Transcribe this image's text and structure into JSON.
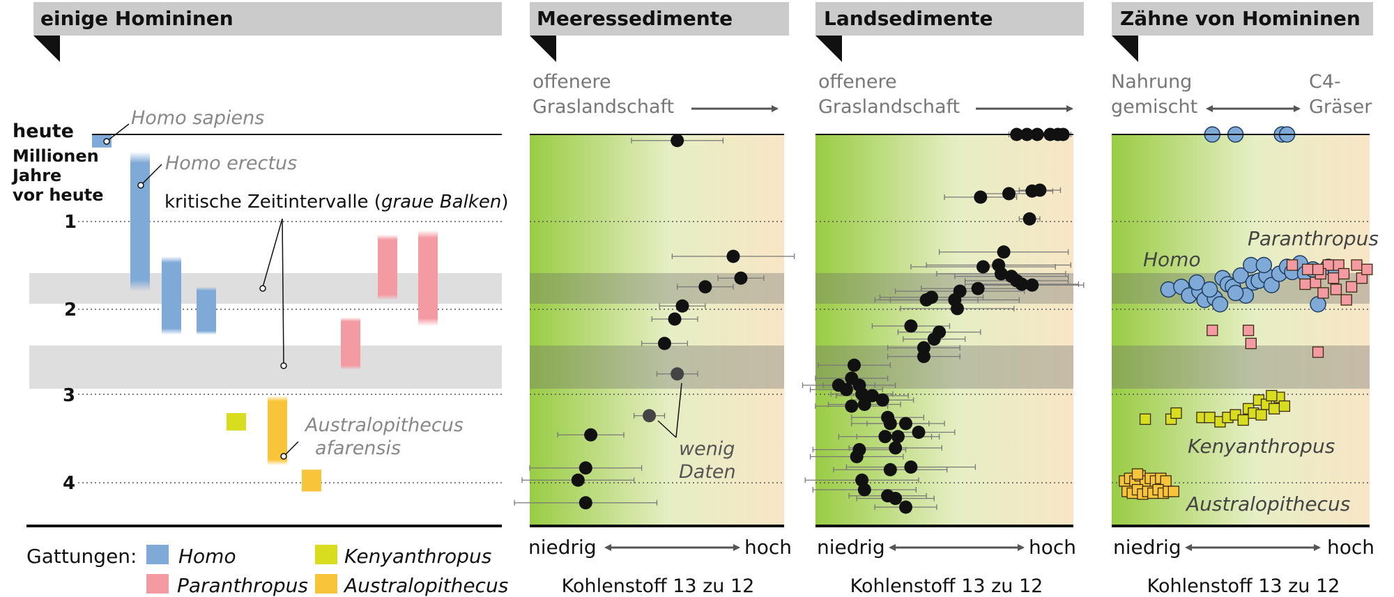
{
  "colors": {
    "homo": "#7fa9d7",
    "paranthropus": "#f49aa3",
    "kenyanthropus": "#d8dd1f",
    "australopithecus": "#f8c53a",
    "header_bg": "#cbcbcb",
    "band_bg": "#dedede",
    "green": "#99cc44",
    "tan": "#f8e6c6",
    "label_gray": "#888888"
  },
  "panels": {
    "hominins": {
      "title": "einige Homininen",
      "top_label": "heute",
      "axis_label_lines": [
        "Millionen",
        "Jahre",
        "vor heute"
      ],
      "ticks": [
        "1",
        "2",
        "3",
        "4"
      ],
      "callouts": {
        "homo_sapiens": "Homo sapiens",
        "homo_erectus": "Homo erectus",
        "critical_prefix": "kritische Zeitintervalle (",
        "critical_italic": "graue Balken",
        "critical_suffix": ")",
        "afarensis_1": "Australopithecus",
        "afarensis_2": "afarensis"
      },
      "legend": {
        "title": "Gattungen:",
        "homo": "Homo",
        "paranthropus": "Paranthropus",
        "kenyanthropus": "Kenyanthropus",
        "australopithecus": "Australopithecus"
      }
    },
    "marine": {
      "title": "Meeressedimente",
      "top_label_1": "offenere",
      "top_label_2": "Graslandschaft",
      "note_1": "wenig",
      "note_2": "Daten",
      "x_low": "niedrig",
      "x_high": "hoch",
      "x_label": "Kohlenstoff 13 zu 12"
    },
    "land": {
      "title": "Landsedimente",
      "top_label_1": "offenere",
      "top_label_2": "Graslandschaft",
      "x_low": "niedrig",
      "x_high": "hoch",
      "x_label": "Kohlenstoff 13 zu 12"
    },
    "teeth": {
      "title": "Zähne von Homininen",
      "top_left_1": "Nahrung",
      "top_left_2": "gemischt",
      "top_right_1": "C4-",
      "top_right_2": "Gräser",
      "label_homo": "Homo",
      "label_paranthropus": "Paranthropus",
      "label_kenyanthropus": "Kenyanthropus",
      "label_australopithecus": "Australopithecus",
      "x_low": "niedrig",
      "x_high": "hoch",
      "x_label": "Kohlenstoff 13 zu 12"
    }
  },
  "chart_data": [
    {
      "type": "bar",
      "title": "einige Homininen",
      "ylabel": "Millionen Jahre vor heute",
      "ylim": [
        0,
        4.4
      ],
      "critical_intervals_ma": [
        [
          1.55,
          1.9
        ],
        [
          2.4,
          2.9
        ]
      ],
      "series": [
        {
          "genus": "Homo",
          "ranges_ma": [
            [
              0.0,
              0.15
            ],
            [
              0.2,
              1.8
            ],
            [
              1.4,
              2.3
            ],
            [
              1.75,
              2.3
            ]
          ]
        },
        {
          "genus": "Paranthropus",
          "ranges_ma": [
            [
              1.15,
              1.9
            ],
            [
              1.1,
              2.2
            ],
            [
              2.1,
              2.7
            ]
          ]
        },
        {
          "genus": "Kenyanthropus",
          "ranges_ma": [
            [
              3.2,
              3.4
            ]
          ]
        },
        {
          "genus": "Australopithecus",
          "ranges_ma": [
            [
              3.0,
              3.8
            ],
            [
              3.85,
              4.1
            ]
          ]
        }
      ]
    },
    {
      "type": "scatter",
      "title": "Meeressedimente",
      "xlabel": "Kohlenstoff 13 zu 12",
      "ylabel": "Millionen Jahre vor heute",
      "xlim": [
        0,
        1
      ],
      "ylim": [
        0,
        4.4
      ],
      "points": [
        {
          "x": 0.58,
          "y": 0.07,
          "err": 0.18
        },
        {
          "x": 0.8,
          "y": 1.4,
          "err": 0.24
        },
        {
          "x": 0.83,
          "y": 1.65,
          "err": 0.09
        },
        {
          "x": 0.69,
          "y": 1.75,
          "err": 0.11
        },
        {
          "x": 0.6,
          "y": 1.97,
          "err": 0.09
        },
        {
          "x": 0.57,
          "y": 2.12,
          "err": 0.09
        },
        {
          "x": 0.53,
          "y": 2.4,
          "err": 0.09
        },
        {
          "x": 0.58,
          "y": 2.75,
          "err": 0.08,
          "sparse": true
        },
        {
          "x": 0.47,
          "y": 3.23,
          "err": 0.06,
          "sparse": true
        },
        {
          "x": 0.24,
          "y": 3.45,
          "err": 0.13
        },
        {
          "x": 0.22,
          "y": 3.83,
          "err": 0.22
        },
        {
          "x": 0.19,
          "y": 3.97,
          "err": 0.22
        },
        {
          "x": 0.22,
          "y": 4.23,
          "err": 0.28
        }
      ]
    },
    {
      "type": "scatter",
      "title": "Landsedimente",
      "xlabel": "Kohlenstoff 13 zu 12",
      "ylabel": "Millionen Jahre vor heute",
      "xlim": [
        0,
        1
      ],
      "ylim": [
        0,
        4.4
      ],
      "points": [
        {
          "x": 0.78,
          "y": 0.0,
          "err": 0.03
        },
        {
          "x": 0.82,
          "y": 0.0,
          "err": 0.03
        },
        {
          "x": 0.86,
          "y": 0.0,
          "err": 0.03
        },
        {
          "x": 0.91,
          "y": 0.0,
          "err": 0.03
        },
        {
          "x": 0.94,
          "y": 0.0,
          "err": 0.03
        },
        {
          "x": 0.96,
          "y": 0.0,
          "err": 0.03
        },
        {
          "x": 0.64,
          "y": 0.72,
          "err": 0.14
        },
        {
          "x": 0.75,
          "y": 0.68,
          "err": 0.12
        },
        {
          "x": 0.84,
          "y": 0.65,
          "err": 0.08
        },
        {
          "x": 0.87,
          "y": 0.64,
          "err": 0.08
        },
        {
          "x": 0.83,
          "y": 0.97,
          "err": 0.04
        },
        {
          "x": 0.73,
          "y": 1.35,
          "err": 0.25
        },
        {
          "x": 0.71,
          "y": 1.5,
          "err": 0.28
        },
        {
          "x": 0.65,
          "y": 1.52,
          "err": 0.28
        },
        {
          "x": 0.72,
          "y": 1.6,
          "err": 0.25
        },
        {
          "x": 0.76,
          "y": 1.63,
          "err": 0.22
        },
        {
          "x": 0.78,
          "y": 1.68,
          "err": 0.2
        },
        {
          "x": 0.8,
          "y": 1.72,
          "err": 0.22
        },
        {
          "x": 0.84,
          "y": 1.73,
          "err": 0.2
        },
        {
          "x": 0.63,
          "y": 1.77,
          "err": 0.22
        },
        {
          "x": 0.56,
          "y": 1.8,
          "err": 0.25
        },
        {
          "x": 0.45,
          "y": 1.87,
          "err": 0.2
        },
        {
          "x": 0.43,
          "y": 1.9,
          "err": 0.2
        },
        {
          "x": 0.54,
          "y": 1.9,
          "err": 0.25
        },
        {
          "x": 0.55,
          "y": 2.0,
          "err": 0.22
        },
        {
          "x": 0.37,
          "y": 2.2,
          "err": 0.15
        },
        {
          "x": 0.48,
          "y": 2.27,
          "err": 0.16
        },
        {
          "x": 0.46,
          "y": 2.35,
          "err": 0.12
        },
        {
          "x": 0.42,
          "y": 2.45,
          "err": 0.14
        },
        {
          "x": 0.42,
          "y": 2.55,
          "err": 0.14
        },
        {
          "x": 0.15,
          "y": 2.65,
          "err": 0.14
        },
        {
          "x": 0.14,
          "y": 2.8,
          "err": 0.14
        },
        {
          "x": 0.09,
          "y": 2.88,
          "err": 0.14
        },
        {
          "x": 0.17,
          "y": 2.88,
          "err": 0.14
        },
        {
          "x": 0.12,
          "y": 2.93,
          "err": 0.14
        },
        {
          "x": 0.18,
          "y": 2.98,
          "err": 0.12
        },
        {
          "x": 0.22,
          "y": 3.0,
          "err": 0.14
        },
        {
          "x": 0.26,
          "y": 3.05,
          "err": 0.12
        },
        {
          "x": 0.19,
          "y": 3.1,
          "err": 0.14
        },
        {
          "x": 0.14,
          "y": 3.12,
          "err": 0.14
        },
        {
          "x": 0.28,
          "y": 3.25,
          "err": 0.14
        },
        {
          "x": 0.29,
          "y": 3.32,
          "err": 0.15
        },
        {
          "x": 0.35,
          "y": 3.32,
          "err": 0.15
        },
        {
          "x": 0.4,
          "y": 3.42,
          "err": 0.14
        },
        {
          "x": 0.27,
          "y": 3.47,
          "err": 0.18
        },
        {
          "x": 0.32,
          "y": 3.47,
          "err": 0.16
        },
        {
          "x": 0.31,
          "y": 3.6,
          "err": 0.18
        },
        {
          "x": 0.17,
          "y": 3.62,
          "err": 0.18
        },
        {
          "x": 0.16,
          "y": 3.7,
          "err": 0.18
        },
        {
          "x": 0.29,
          "y": 3.85,
          "err": 0.22
        },
        {
          "x": 0.37,
          "y": 3.82,
          "err": 0.25
        },
        {
          "x": 0.18,
          "y": 3.97,
          "err": 0.22
        },
        {
          "x": 0.19,
          "y": 4.08,
          "err": 0.2
        },
        {
          "x": 0.28,
          "y": 4.15,
          "err": 0.15
        },
        {
          "x": 0.31,
          "y": 4.18,
          "err": 0.15
        },
        {
          "x": 0.35,
          "y": 4.28,
          "err": 0.12
        }
      ]
    },
    {
      "type": "scatter",
      "title": "Zähne von Homininen",
      "xlabel": "Kohlenstoff 13 zu 12",
      "ylabel": "Millionen Jahre vor heute",
      "xlim": [
        0,
        1
      ],
      "ylim": [
        0,
        4.4
      ],
      "series": [
        {
          "name": "Homo",
          "points": [
            [
              0.39,
              0.0
            ],
            [
              0.48,
              0.0
            ],
            [
              0.66,
              0.0
            ],
            [
              0.68,
              0.0
            ],
            [
              0.22,
              1.78
            ],
            [
              0.27,
              1.75
            ],
            [
              0.3,
              1.85
            ],
            [
              0.34,
              1.8
            ],
            [
              0.36,
              1.9
            ],
            [
              0.4,
              1.88
            ],
            [
              0.43,
              1.65
            ],
            [
              0.45,
              1.72
            ],
            [
              0.47,
              1.75
            ],
            [
              0.5,
              1.62
            ],
            [
              0.52,
              1.85
            ],
            [
              0.55,
              1.7
            ],
            [
              0.57,
              1.68
            ],
            [
              0.6,
              1.62
            ],
            [
              0.62,
              1.73
            ],
            [
              0.65,
              1.6
            ],
            [
              0.68,
              1.52
            ],
            [
              0.7,
              1.58
            ],
            [
              0.73,
              1.48
            ],
            [
              0.75,
              1.6
            ],
            [
              0.78,
              1.55
            ],
            [
              0.84,
              1.52
            ],
            [
              0.87,
              1.58
            ],
            [
              0.54,
              1.5
            ],
            [
              0.59,
              1.5
            ],
            [
              0.42,
              1.95
            ],
            [
              0.33,
              1.7
            ],
            [
              0.8,
              1.95
            ],
            [
              0.38,
              1.78
            ],
            [
              0.48,
              1.82
            ]
          ]
        },
        {
          "name": "Paranthropus",
          "points": [
            [
              0.7,
              1.5
            ],
            [
              0.76,
              1.55
            ],
            [
              0.79,
              1.7
            ],
            [
              0.82,
              1.82
            ],
            [
              0.84,
              1.5
            ],
            [
              0.86,
              1.65
            ],
            [
              0.88,
              1.5
            ],
            [
              0.9,
              1.6
            ],
            [
              0.93,
              1.75
            ],
            [
              0.95,
              1.5
            ],
            [
              0.97,
              1.65
            ],
            [
              0.99,
              1.55
            ],
            [
              0.91,
              1.9
            ],
            [
              0.75,
              1.72
            ],
            [
              0.81,
              1.6
            ],
            [
              0.87,
              1.78
            ],
            [
              0.8,
              1.55
            ],
            [
              0.39,
              2.25
            ],
            [
              0.53,
              2.25
            ],
            [
              0.54,
              2.4
            ],
            [
              0.8,
              2.5
            ]
          ]
        },
        {
          "name": "Kenyanthropus",
          "points": [
            [
              0.13,
              3.27
            ],
            [
              0.23,
              3.27
            ],
            [
              0.25,
              3.2
            ],
            [
              0.35,
              3.25
            ],
            [
              0.38,
              3.25
            ],
            [
              0.42,
              3.3
            ],
            [
              0.45,
              3.25
            ],
            [
              0.48,
              3.22
            ],
            [
              0.51,
              3.28
            ],
            [
              0.53,
              3.15
            ],
            [
              0.55,
              3.2
            ],
            [
              0.57,
              3.05
            ],
            [
              0.6,
              3.1
            ],
            [
              0.63,
              3.15
            ],
            [
              0.65,
              3.02
            ],
            [
              0.67,
              3.12
            ],
            [
              0.62,
              3.0
            ],
            [
              0.58,
              3.22
            ]
          ]
        },
        {
          "name": "Australopithecus",
          "points": [
            [
              0.05,
              3.98
            ],
            [
              0.07,
              3.95
            ],
            [
              0.09,
              3.98
            ],
            [
              0.11,
              3.92
            ],
            [
              0.13,
              3.98
            ],
            [
              0.15,
              3.95
            ],
            [
              0.17,
              3.98
            ],
            [
              0.19,
              3.95
            ],
            [
              0.21,
              3.98
            ],
            [
              0.06,
              4.1
            ],
            [
              0.08,
              4.12
            ],
            [
              0.1,
              4.08
            ],
            [
              0.12,
              4.13
            ],
            [
              0.14,
              4.1
            ],
            [
              0.16,
              4.12
            ],
            [
              0.18,
              4.08
            ],
            [
              0.2,
              4.12
            ],
            [
              0.22,
              4.1
            ],
            [
              0.24,
              4.1
            ],
            [
              0.1,
              3.9
            ]
          ]
        }
      ]
    }
  ]
}
